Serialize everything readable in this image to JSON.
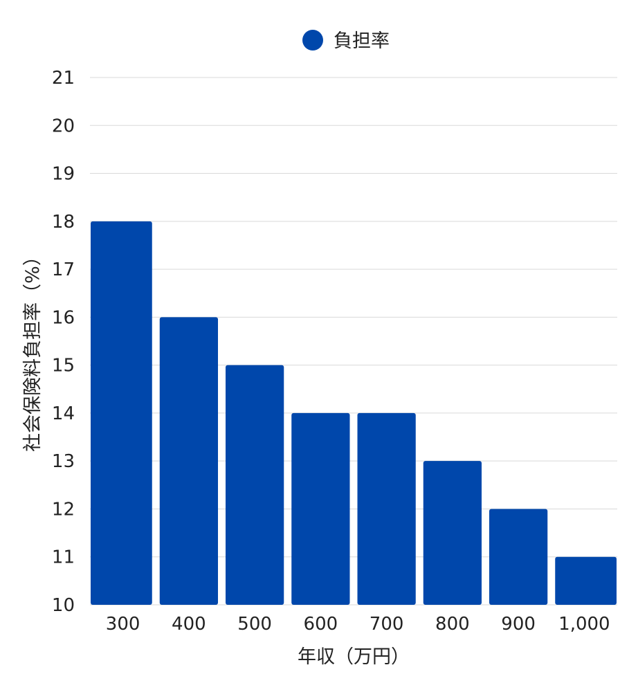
{
  "chart_data": {
    "type": "bar",
    "categories": [
      "300",
      "400",
      "500",
      "600",
      "700",
      "800",
      "900",
      "1,000"
    ],
    "series": [
      {
        "name": "負担率",
        "values": [
          18,
          16,
          15,
          14,
          14,
          13,
          12,
          11
        ],
        "color": "#0047ab"
      }
    ],
    "title": "",
    "xlabel": "年収（万円）",
    "ylabel": "社会保険料負担率（%）",
    "ylim": [
      10,
      21
    ],
    "yticks": [
      "10",
      "11",
      "12",
      "13",
      "14",
      "15",
      "16",
      "17",
      "18",
      "19",
      "20",
      "21"
    ],
    "grid": true,
    "legend": "top-center"
  }
}
